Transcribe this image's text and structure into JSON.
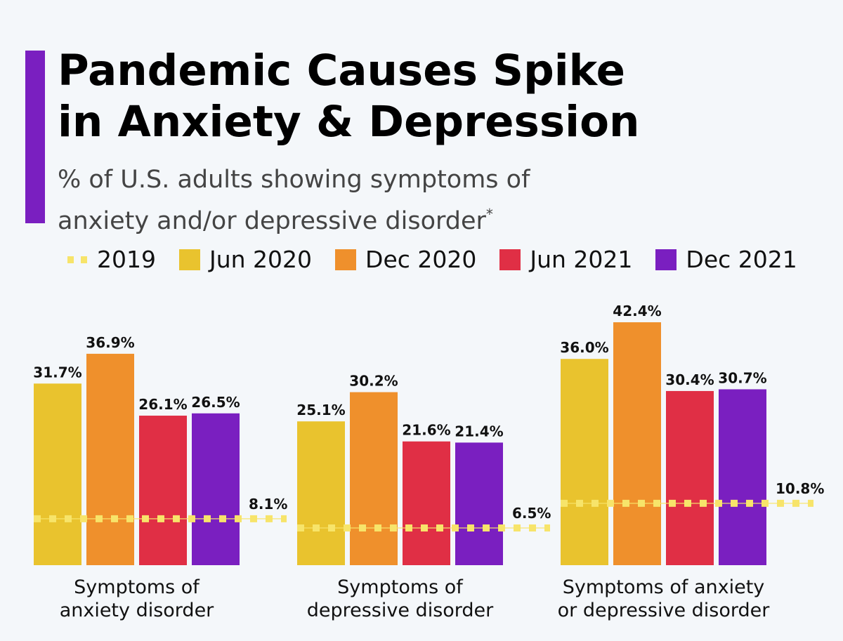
{
  "title_lines": [
    "Pandemic Causes Spike",
    "in Anxiety & Depression"
  ],
  "subtitle_lines": [
    "% of U.S. adults showing symptoms of",
    "anxiety and/or depressive disorder"
  ],
  "subtitle_footnote_mark": "*",
  "colors": {
    "accent": "#7a1fc0",
    "baseline_2019": "#f7e46a"
  },
  "chart_data": {
    "type": "bar",
    "title": "Pandemic Causes Spike in Anxiety & Depression",
    "subtitle": "% of U.S. adults showing symptoms of anxiety and/or depressive disorder*",
    "categories": [
      [
        "Symptoms of",
        "anxiety disorder"
      ],
      [
        "Symptoms of",
        "depressive disorder"
      ],
      [
        "Symptoms of anxiety",
        "or depressive disorder"
      ]
    ],
    "series": [
      {
        "name": "Jun 2020",
        "color": "#e9c32e",
        "values": [
          31.7,
          25.1,
          36.0
        ],
        "labels": [
          "31.7%",
          "25.1%",
          "36.0%"
        ]
      },
      {
        "name": "Dec 2020",
        "color": "#ef902c",
        "values": [
          36.9,
          30.2,
          42.4
        ],
        "labels": [
          "36.9%",
          "30.2%",
          "42.4%"
        ]
      },
      {
        "name": "Jun 2021",
        "color": "#e02f45",
        "values": [
          26.1,
          21.6,
          30.4
        ],
        "labels": [
          "26.1%",
          "21.6%",
          "30.4%"
        ]
      },
      {
        "name": "Dec 2021",
        "color": "#7a1fc0",
        "values": [
          26.5,
          21.4,
          30.7
        ],
        "labels": [
          "26.5%",
          "21.4%",
          "30.7%"
        ]
      }
    ],
    "reference": {
      "name": "2019",
      "style": "dashed",
      "values": [
        8.1,
        6.5,
        10.8
      ],
      "labels": [
        "8.1%",
        "6.5%",
        "10.8%"
      ]
    },
    "ylim": [
      0,
      42.4
    ],
    "grid": false,
    "legend_position": "top"
  }
}
